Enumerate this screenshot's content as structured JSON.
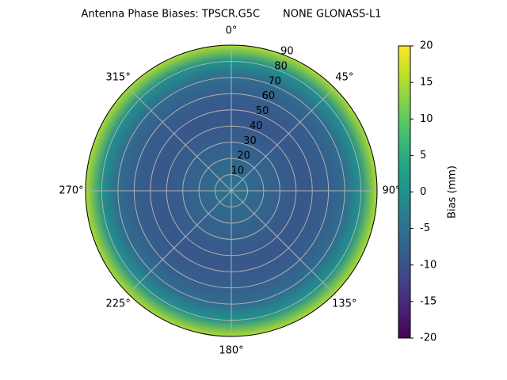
{
  "chart_data": {
    "type": "polar_contour",
    "title": "Antenna Phase Biases: TPSCR.G5C       NONE GLONASS-L1",
    "r": [
      0,
      10,
      20,
      30,
      40,
      50,
      60,
      70,
      80,
      90
    ],
    "values": [
      -5,
      -6,
      -7,
      -8,
      -9,
      -9,
      -8,
      -6,
      0,
      15
    ],
    "rlim": [
      0,
      90
    ],
    "rticks": [
      10,
      20,
      30,
      40,
      50,
      60,
      70,
      80,
      90
    ],
    "thetaticks": [
      {
        "value": 0,
        "label": "0°"
      },
      {
        "value": 45,
        "label": "45°"
      },
      {
        "value": 90,
        "label": "90°"
      },
      {
        "value": 135,
        "label": "135°"
      },
      {
        "value": 180,
        "label": "180°"
      },
      {
        "value": 225,
        "label": "225°"
      },
      {
        "value": 270,
        "label": "270°"
      },
      {
        "value": 315,
        "label": "315°"
      }
    ],
    "colormap": "viridis",
    "clim": [
      -20,
      20
    ],
    "cticks": [
      -20,
      -15,
      -10,
      -5,
      0,
      5,
      10,
      15,
      20
    ],
    "colorbar_label": "Bias (mm)",
    "grid": true
  }
}
